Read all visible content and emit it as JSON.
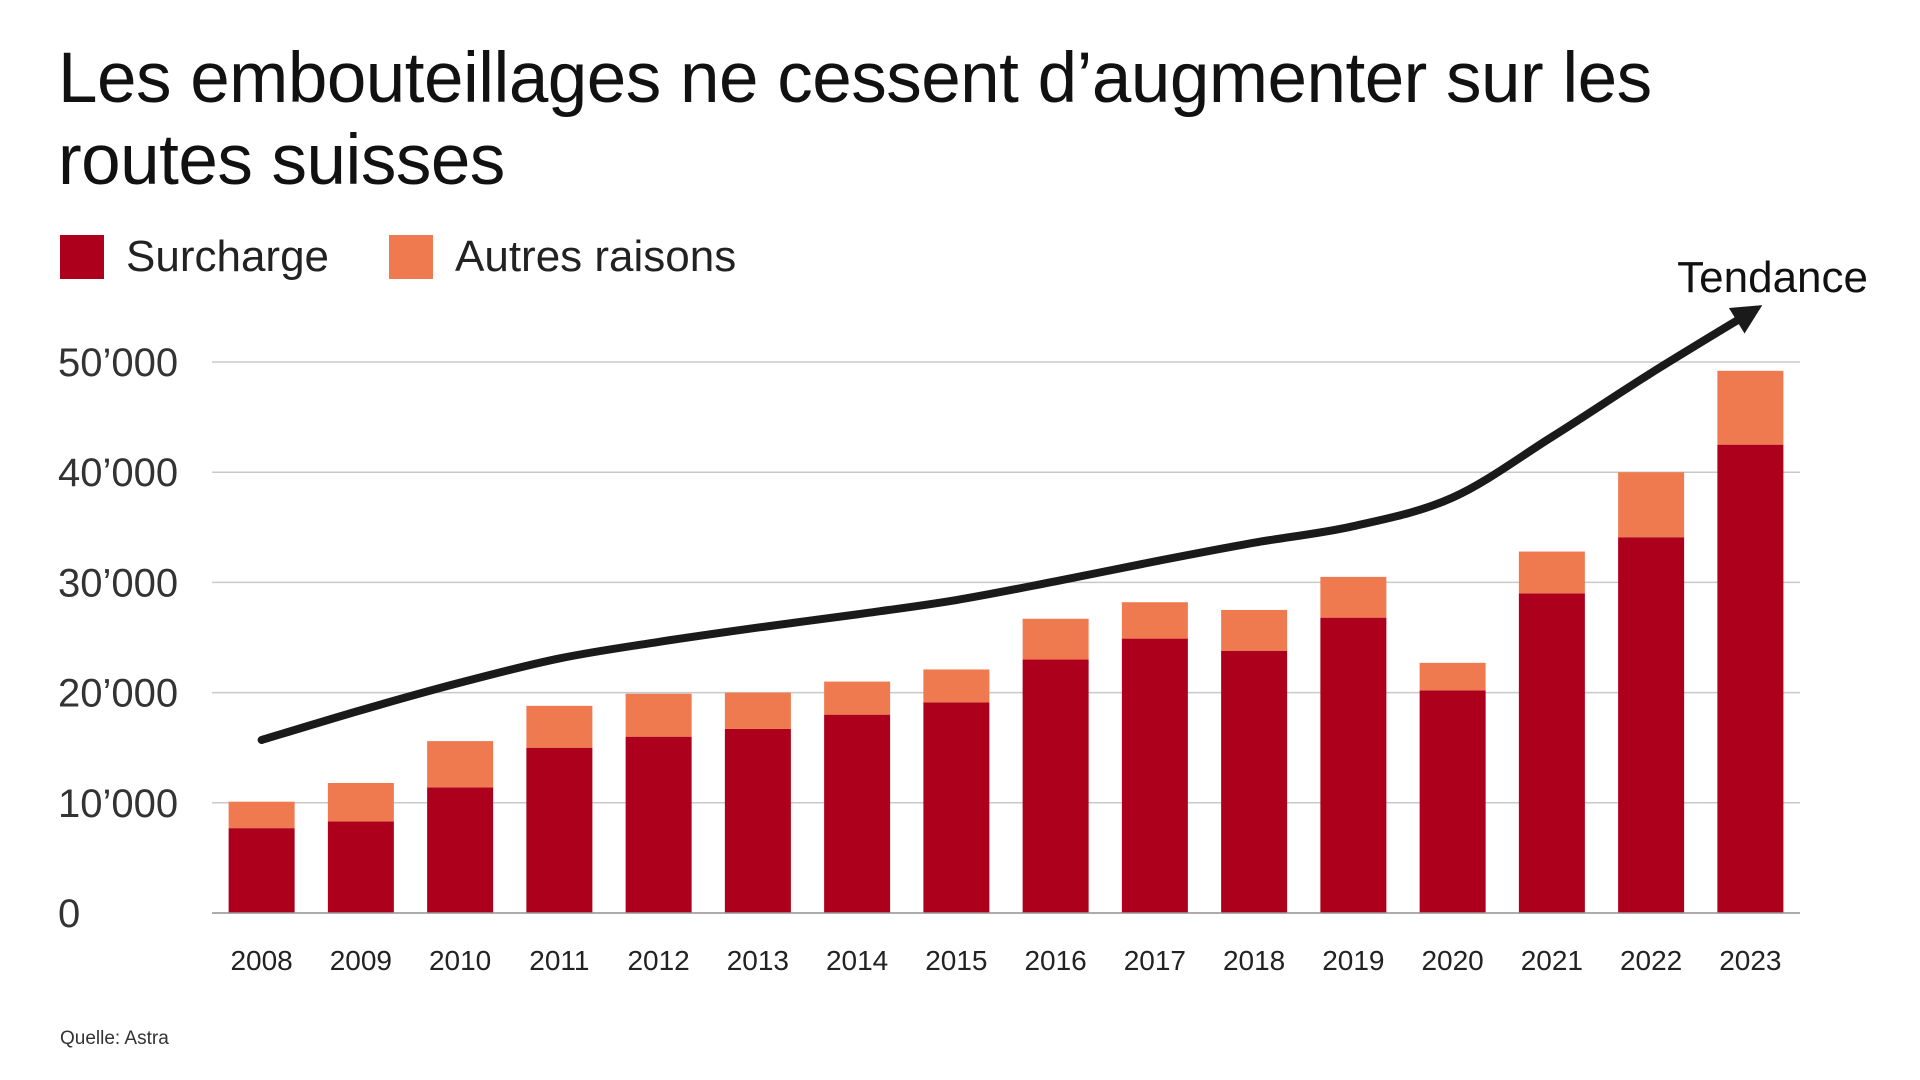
{
  "title": "Les embouteillages ne cessent d’augmenter sur les routes suisses",
  "source": "Quelle: Astra",
  "colors": {
    "surcharge": "#ad001d",
    "autres": "#ef7a50",
    "grid": "#c9c9c9",
    "trend": "#1a1a1a"
  },
  "chart_data": {
    "type": "bar",
    "stacked": true,
    "categories": [
      "2008",
      "2009",
      "2010",
      "2011",
      "2012",
      "2013",
      "2014",
      "2015",
      "2016",
      "2017",
      "2018",
      "2019",
      "2020",
      "2021",
      "2022",
      "2023"
    ],
    "series": [
      {
        "name": "Surcharge",
        "color": "#ad001d",
        "values": [
          7700,
          8300,
          11400,
          15000,
          16000,
          16700,
          18000,
          19100,
          23000,
          24900,
          23800,
          26800,
          20200,
          29000,
          34100,
          42500
        ]
      },
      {
        "name": "Autres raisons",
        "color": "#ef7a50",
        "values": [
          2400,
          3500,
          4200,
          3800,
          3900,
          3300,
          3000,
          3000,
          3700,
          3300,
          3700,
          3700,
          2500,
          3800,
          5900,
          6700
        ]
      }
    ],
    "trend": {
      "label": "Tendance",
      "values": [
        15700,
        18400,
        20900,
        23100,
        24600,
        25900,
        27100,
        28400,
        30100,
        31900,
        33600,
        35100,
        37700,
        43200,
        49000,
        54500
      ]
    },
    "yticks": [
      0,
      10000,
      20000,
      30000,
      40000,
      50000
    ],
    "ytick_labels": [
      "0",
      "10’000",
      "20’000",
      "30’000",
      "40’000",
      "50’000"
    ],
    "ylim": [
      0,
      50000
    ],
    "grid": true,
    "legend": "top-left"
  }
}
